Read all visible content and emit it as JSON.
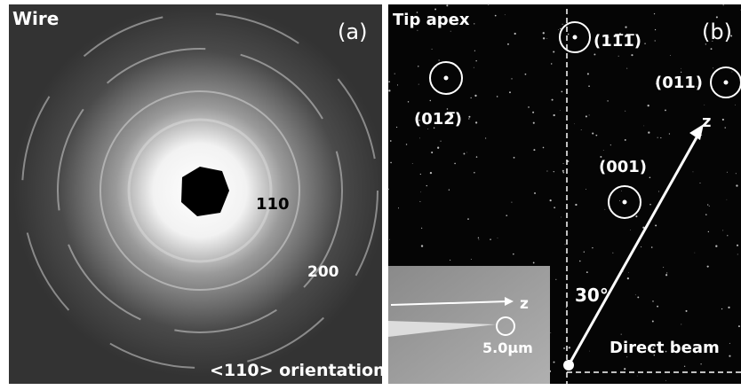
{
  "panel_a": {
    "title": "Wire",
    "label": "(a)",
    "ring_110": "110",
    "ring_200": "200",
    "orientation": "<110> orientation"
  },
  "panel_b": {
    "title": "Tip apex",
    "label": "(b)",
    "spot_1": "(11̅1̅)",
    "spot_2": "(011)",
    "spot_3": "(012̅)",
    "spot_4": "(001)",
    "axis": "z",
    "angle": "30°",
    "beam": "Direct beam",
    "inset_axis": "z",
    "inset_scale": "5.0μm"
  }
}
